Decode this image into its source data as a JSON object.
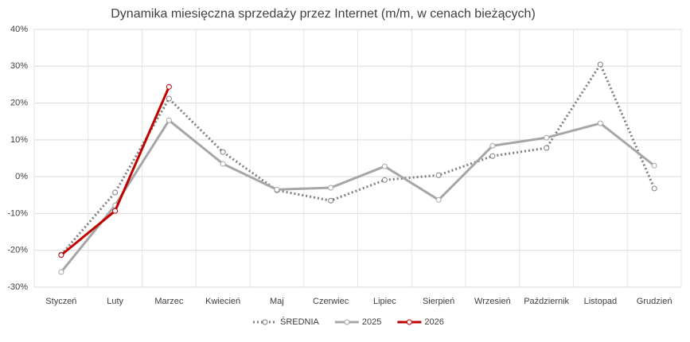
{
  "chart_data": {
    "type": "line",
    "title": "Dynamika miesięczna sprzedaży przez Internet (m/m, w cenach bieżących)",
    "categories": [
      "Styczeń",
      "Luty",
      "Marzec",
      "Kwiecień",
      "Maj",
      "Czerwiec",
      "Lipiec",
      "Sierpień",
      "Wrzesień",
      "Październik",
      "Listopad",
      "Grudzień"
    ],
    "series": [
      {
        "name": "ŚREDNIA",
        "color": "#7f7f7f",
        "line_style": "dotted",
        "values": [
          -21.2,
          -4.3,
          21.2,
          6.7,
          -3.7,
          -6.5,
          -0.9,
          0.4,
          5.6,
          7.8,
          30.5,
          -3.2
        ]
      },
      {
        "name": "2025",
        "color": "#a6a6a6",
        "line_style": "solid",
        "values": [
          -25.9,
          -7.8,
          15.3,
          3.5,
          -3.5,
          -3.0,
          2.8,
          -6.3,
          8.4,
          10.6,
          14.5,
          3.0
        ]
      },
      {
        "name": "2026",
        "color": "#c00000",
        "line_style": "solid",
        "values": [
          -21.3,
          -9.3,
          24.4,
          null,
          null,
          null,
          null,
          null,
          null,
          null,
          null,
          null
        ]
      }
    ],
    "ylim": [
      -30,
      40
    ],
    "yticks": [
      {
        "value": -30,
        "label": "-30%"
      },
      {
        "value": -20,
        "label": "-20%"
      },
      {
        "value": -10,
        "label": "-10%"
      },
      {
        "value": 0,
        "label": "0%"
      },
      {
        "value": 10,
        "label": "10%"
      },
      {
        "value": 20,
        "label": "20%"
      },
      {
        "value": 30,
        "label": "30%"
      },
      {
        "value": 40,
        "label": "40%"
      }
    ],
    "grid": true,
    "legend": "bottom"
  }
}
